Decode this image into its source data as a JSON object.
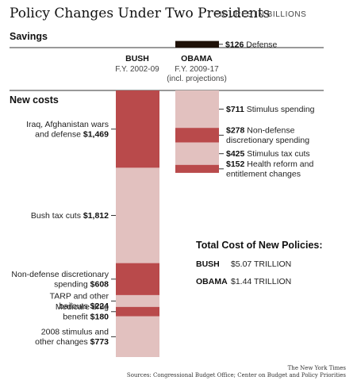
{
  "title": "Policy Changes Under Two Presidents",
  "subtitle": "FIGURES IN BILLIONS",
  "sections": {
    "savings": "Savings",
    "new_costs": "New costs"
  },
  "columns": [
    {
      "name": "BUSH",
      "period": "F.Y. 2002-09",
      "note": ""
    },
    {
      "name": "OBAMA",
      "period": "F.Y. 2009-17",
      "note": "(incl. projections)"
    }
  ],
  "colors": {
    "dark": "#b94a4b",
    "light": "#e2c1bf",
    "savings": "#1e1108",
    "rule": "#333333"
  },
  "chart_data": {
    "type": "bar",
    "stacked": true,
    "unit": "billions",
    "savings": [
      {
        "series": "OBAMA",
        "label": "Defense",
        "value": 126,
        "value_text": "$126"
      }
    ],
    "series": [
      {
        "name": "BUSH",
        "segments": [
          {
            "label_lines": [
              "Iraq, Afghanistan wars",
              "and defense"
            ],
            "value": 1469,
            "value_text": "$1,469",
            "shade": "dark"
          },
          {
            "label_lines": [
              "Bush tax cuts"
            ],
            "value": 1812,
            "value_text": "$1,812",
            "shade": "light"
          },
          {
            "label_lines": [
              "Non-defense discretionary",
              "spending"
            ],
            "value": 608,
            "value_text": "$608",
            "shade": "dark"
          },
          {
            "label_lines": [
              "TARP and other",
              "bailouts"
            ],
            "value": 224,
            "value_text": "$224",
            "shade": "light"
          },
          {
            "label_lines": [
              "Medicare drug",
              "benefit"
            ],
            "value": 180,
            "value_text": "$180",
            "shade": "dark"
          },
          {
            "label_lines": [
              "2008 stimulus and",
              "other changes"
            ],
            "value": 773,
            "value_text": "$773",
            "shade": "light"
          }
        ]
      },
      {
        "name": "OBAMA",
        "segments": [
          {
            "label_lines": [
              "Stimulus spending"
            ],
            "value": 711,
            "value_text": "$711",
            "shade": "light"
          },
          {
            "label_lines": [
              "Non-defense",
              "discretionary spending"
            ],
            "value": 278,
            "value_text": "$278",
            "shade": "dark"
          },
          {
            "label_lines": [
              "Stimulus tax cuts"
            ],
            "value": 425,
            "value_text": "$425",
            "shade": "light"
          },
          {
            "label_lines": [
              "Health reform and",
              "entitlement changes"
            ],
            "value": 152,
            "value_text": "$152",
            "shade": "dark"
          }
        ]
      }
    ]
  },
  "totals": {
    "title": "Total Cost of New Policies:",
    "rows": [
      {
        "name": "BUSH",
        "value": "$5.07 TRILLION"
      },
      {
        "name": "OBAMA",
        "value": "$1.44 TRILLION"
      }
    ]
  },
  "credits": {
    "publisher": "The New York Times",
    "sources": "Sources: Congressional Budget Office; Center on Budget and Policy Priorities"
  }
}
